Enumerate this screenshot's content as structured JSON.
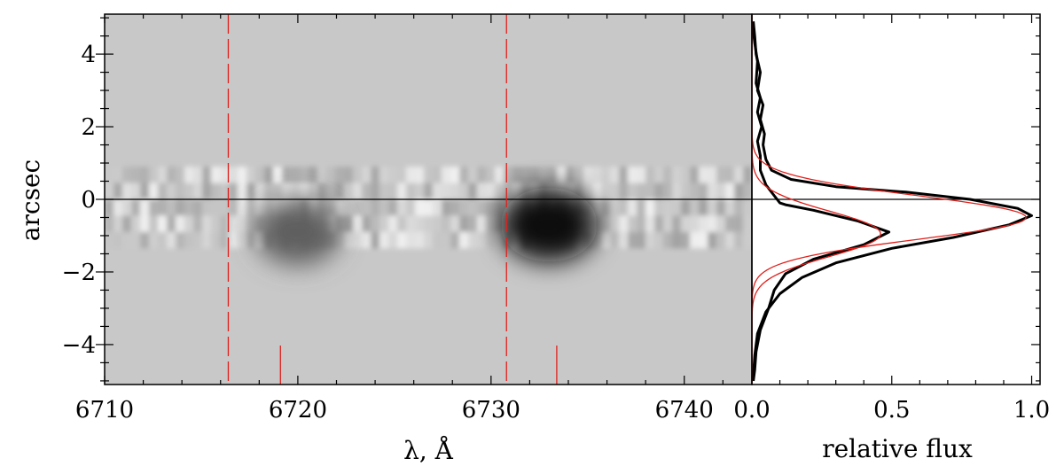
{
  "chart_data": [
    {
      "type": "heatmap",
      "xlabel": "λ, Å",
      "ylabel": "arcsec",
      "xlim": [
        6710,
        6743.5
      ],
      "ylim": [
        -5.1,
        5.1
      ],
      "xticks": [
        6710,
        6720,
        6730,
        6740
      ],
      "yticks": [
        -4,
        -2,
        0,
        2,
        4
      ],
      "colormap": "grayscale",
      "background": "#c8c8c8",
      "hline_y": 0,
      "dashed_lines_x": [
        6716.4,
        6730.8
      ],
      "short_marks_x": [
        6719.1,
        6733.4
      ],
      "marker_color": "#e0201b",
      "dark_regions": [
        {
          "x": 6720.0,
          "y": -0.9,
          "strength": 0.55
        },
        {
          "x": 6733.0,
          "y": -0.7,
          "strength": 1.0
        }
      ]
    },
    {
      "type": "line",
      "xlabel": "relative flux",
      "xlim": [
        0.0,
        1.03
      ],
      "ylim": [
        -5.1,
        5.1
      ],
      "xticks": [
        "0.0",
        "0.5",
        "1.0"
      ],
      "series": [
        {
          "color": "#000000",
          "points": [
            [
              0.005,
              4.9
            ],
            [
              0.01,
              4.5
            ],
            [
              0.015,
              4.0
            ],
            [
              0.03,
              3.5
            ],
            [
              0.02,
              3.0
            ],
            [
              0.04,
              2.6
            ],
            [
              0.03,
              2.2
            ],
            [
              0.045,
              1.8
            ],
            [
              0.04,
              1.5
            ],
            [
              0.05,
              1.1
            ],
            [
              0.07,
              0.8
            ],
            [
              0.14,
              0.55
            ],
            [
              0.3,
              0.35
            ],
            [
              0.55,
              0.2
            ],
            [
              0.78,
              0.0
            ],
            [
              0.95,
              -0.25
            ],
            [
              1.0,
              -0.45
            ],
            [
              0.92,
              -0.7
            ],
            [
              0.72,
              -1.05
            ],
            [
              0.5,
              -1.35
            ],
            [
              0.3,
              -1.75
            ],
            [
              0.18,
              -2.15
            ],
            [
              0.1,
              -2.6
            ],
            [
              0.05,
              -3.1
            ],
            [
              0.02,
              -3.7
            ],
            [
              0.01,
              -4.3
            ],
            [
              0.005,
              -4.9
            ]
          ]
        },
        {
          "color": "#000000",
          "points": [
            [
              0.003,
              4.8
            ],
            [
              0.01,
              4.3
            ],
            [
              0.02,
              3.8
            ],
            [
              0.015,
              3.2
            ],
            [
              0.03,
              2.8
            ],
            [
              0.02,
              2.4
            ],
            [
              0.035,
              2.0
            ],
            [
              0.02,
              1.6
            ],
            [
              0.03,
              1.2
            ],
            [
              0.03,
              0.8
            ],
            [
              0.05,
              0.4
            ],
            [
              0.08,
              0.1
            ],
            [
              0.1,
              -0.1
            ],
            [
              0.12,
              -0.15
            ],
            [
              0.22,
              -0.3
            ],
            [
              0.38,
              -0.6
            ],
            [
              0.49,
              -0.9
            ],
            [
              0.4,
              -1.25
            ],
            [
              0.22,
              -1.65
            ],
            [
              0.12,
              -2.05
            ],
            [
              0.08,
              -2.5
            ],
            [
              0.06,
              -3.0
            ],
            [
              0.03,
              -3.6
            ],
            [
              0.015,
              -4.2
            ],
            [
              0.01,
              -4.7
            ],
            [
              0.005,
              -5.0
            ]
          ]
        },
        {
          "color": "#e0201b",
          "gaussian": {
            "amp": 0.98,
            "center": -0.5,
            "sigma": 0.6
          }
        },
        {
          "color": "#e0201b",
          "gaussian": {
            "amp": 0.46,
            "center": -0.95,
            "sigma": 0.62
          }
        }
      ],
      "hline_y": 0
    }
  ]
}
